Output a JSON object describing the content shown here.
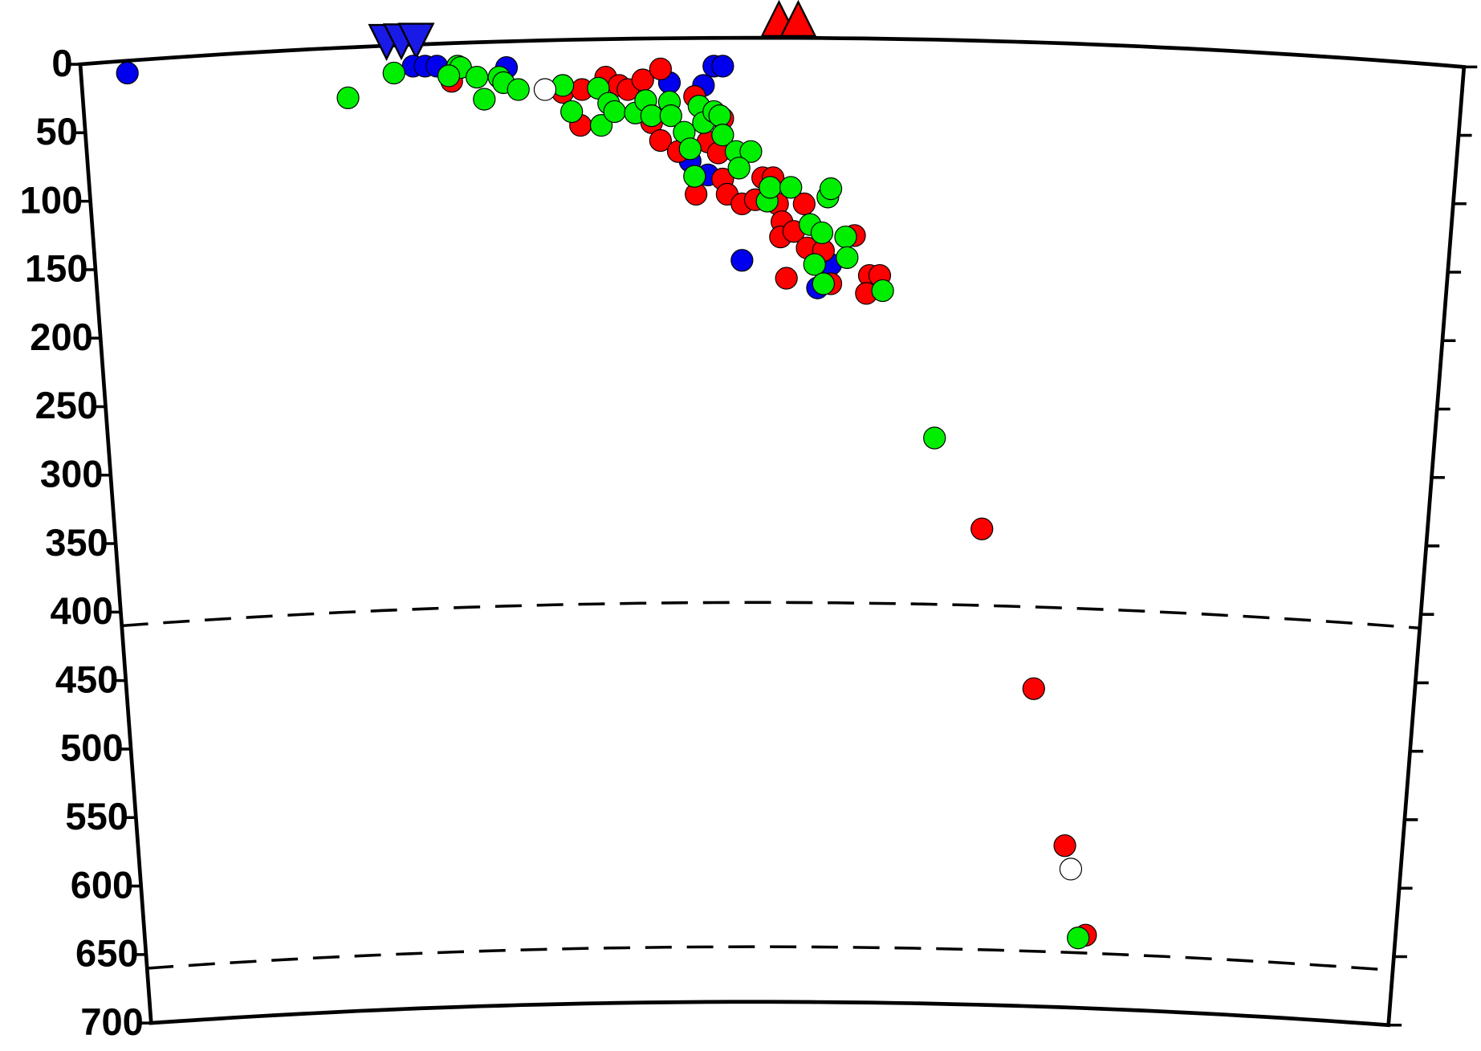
{
  "chart_data": {
    "type": "scatter",
    "xlim": [
      0,
      100
    ],
    "ylim": [
      0,
      700
    ],
    "yticks": [
      0,
      50,
      100,
      150,
      200,
      250,
      300,
      350,
      400,
      450,
      500,
      550,
      600,
      650,
      700
    ],
    "dashed_depths": [
      410,
      660
    ],
    "markers": [
      {
        "shape": "inverted-triangle",
        "color": "#1a1ae6",
        "x": [
          26.1,
          27.1,
          28.1
        ]
      },
      {
        "shape": "triangle",
        "color": "#ff0000",
        "x": [
          52.6,
          53.9
        ]
      }
    ],
    "series": [
      {
        "color": "#0000ee",
        "x": [
          8.6,
          27.9,
          28.7,
          29.5,
          34.2,
          45.2,
          48.2,
          48.8,
          47.5,
          46.6,
          47.8,
          50.1,
          55.2,
          56.1
        ],
        "values": [
          5,
          0,
          0,
          0,
          1,
          12,
          0,
          0,
          14,
          69,
          79,
          141,
          161,
          144
        ]
      },
      {
        "color": "#ff0000",
        "x": [
          30.5,
          38.0,
          39.3,
          39.2,
          40.9,
          41.8,
          42.4,
          43.4,
          44.6,
          44.0,
          44.6,
          45.8,
          46.9,
          47.8,
          48.5,
          48.8,
          47.0,
          48.8,
          49.1,
          50.1,
          51.0,
          51.5,
          52.2,
          52.5,
          54.3,
          52.8,
          52.7,
          53.6,
          54.5,
          55.6,
          57.7,
          56.1,
          53.1,
          58.7,
          59.4,
          58.5,
          66.3,
          69.8,
          71.9,
          73.3
        ],
        "values": [
          11,
          19,
          17,
          43,
          8,
          14,
          17,
          10,
          2,
          41,
          54,
          62,
          22,
          55,
          63,
          38,
          93,
          82,
          93,
          100,
          97,
          81,
          81,
          100,
          100,
          113,
          124,
          120,
          132,
          134,
          123,
          158,
          154,
          152,
          152,
          165,
          336,
          452,
          566,
          631
        ]
      },
      {
        "color": "#00ee00",
        "x": [
          23.5,
          26.6,
          30.9,
          31.1,
          30.3,
          32.2,
          32.7,
          33.7,
          34.0,
          35.0,
          38.0,
          38.6,
          40.4,
          40.6,
          41.1,
          41.5,
          42.9,
          43.6,
          44.0,
          45.2,
          45.3,
          46.2,
          46.6,
          46.9,
          47.2,
          47.5,
          48.2,
          48.6,
          48.8,
          49.7,
          50.7,
          49.9,
          51.8,
          52.0,
          53.4,
          54.7,
          55.5,
          55.9,
          56.1,
          57.1,
          57.2,
          55.0,
          55.6,
          59.6,
          63.1,
          72.8
        ],
        "values": [
          23,
          5,
          0,
          1,
          7,
          8,
          24,
          8,
          12,
          17,
          14,
          33,
          16,
          43,
          27,
          33,
          34,
          25,
          36,
          26,
          36,
          48,
          60,
          80,
          29,
          41,
          33,
          36,
          50,
          62,
          62,
          74,
          98,
          88,
          88,
          115,
          121,
          95,
          89,
          124,
          139,
          144,
          158,
          163,
          270,
          633
        ]
      },
      {
        "color": "#ffffff",
        "x": [
          36.8,
          72.3
        ],
        "values": [
          17,
          583
        ]
      }
    ]
  }
}
